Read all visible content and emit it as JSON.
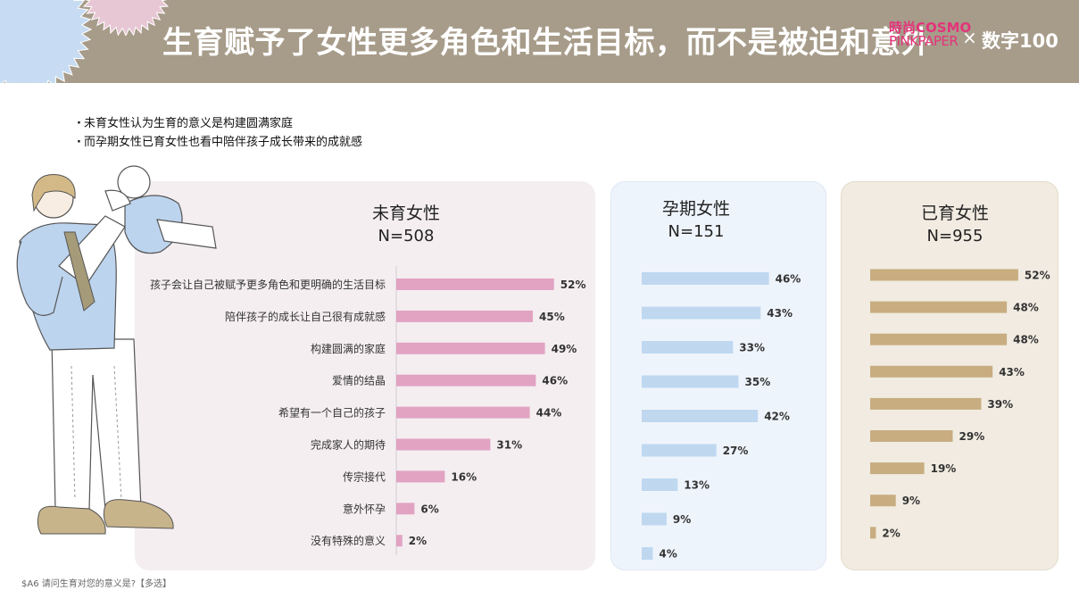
{
  "header": {
    "title": "生育赋予了女性更多角色和生活目标，而不是被迫和意外",
    "logo_cosmo_line1": "時尚COSMO",
    "logo_cosmo_line2": "PINKPAPER",
    "logo_separator": "×",
    "logo_partner": "数字100"
  },
  "bullets": [
    "未育女性认为生育的意义是构建圆满家庭",
    "而孕期女性已育女性也看中陪伴孩子成长带来的成就感"
  ],
  "footnote": "$A6 请问生育对您的意义是?【多选】",
  "colors": {
    "header_bg": "#a79c8a",
    "nullipara_bar": "#e2a3c2",
    "pregnant_bar": "#bfd8f0",
    "mother_bar": "#c8ad80"
  },
  "chart_data": {
    "type": "bar",
    "orientation": "horizontal",
    "categories": [
      "孩子会让自己被赋予更多角色和更明确的生活目标",
      "陪伴孩子的成长让自己很有成就感",
      "构建圆满的家庭",
      "爱情的结晶",
      "希望有一个自己的孩子",
      "完成家人的期待",
      "传宗接代",
      "意外怀孕",
      "没有特殊的意义"
    ],
    "unit": "%",
    "xlim": [
      0,
      100
    ],
    "series": [
      {
        "name": "未育女性",
        "n_label": "N=508",
        "values": [
          52,
          45,
          49,
          46,
          44,
          31,
          16,
          6,
          2
        ]
      },
      {
        "name": "孕期女性",
        "n_label": "N=151",
        "values": [
          46,
          43,
          33,
          35,
          42,
          27,
          13,
          9,
          4
        ]
      },
      {
        "name": "已育女性",
        "n_label": "N=955",
        "values": [
          52,
          48,
          48,
          43,
          39,
          29,
          19,
          9,
          2
        ]
      }
    ]
  }
}
